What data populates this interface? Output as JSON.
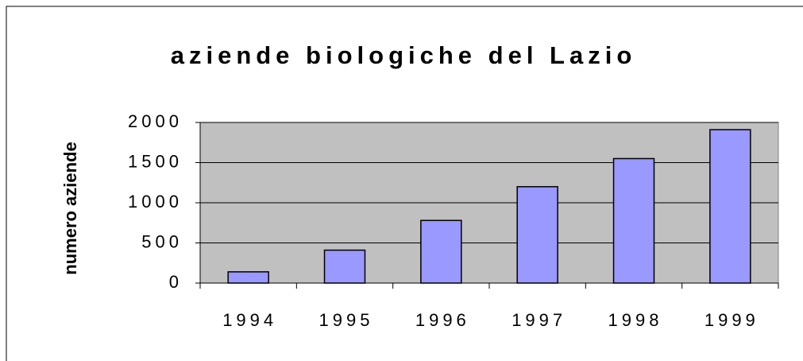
{
  "chart_data": {
    "type": "bar",
    "title": "aziende biologiche del Lazio",
    "y_label": "numero aziende",
    "categories": [
      "1994",
      "1995",
      "1996",
      "1997",
      "1998",
      "1999"
    ],
    "values": [
      140,
      410,
      780,
      1200,
      1550,
      1910
    ],
    "color": "#9999ff",
    "plot_background": "#c0c0c0",
    "ylim": [
      0,
      2000
    ],
    "yticks": [
      0,
      500,
      1000,
      1500,
      2000
    ],
    "grid": true
  }
}
